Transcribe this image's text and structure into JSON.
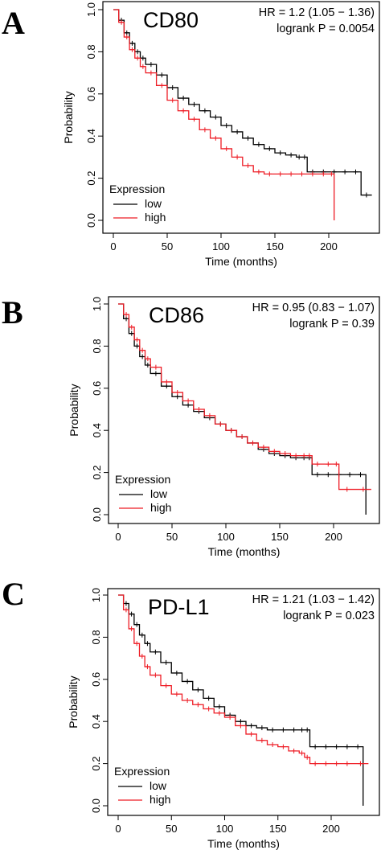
{
  "chart_data": [
    {
      "type": "line",
      "panel": "A",
      "title": "CD80",
      "hr_text": "HR = 1.2 (1.05 − 1.36)",
      "logrank_text": "logrank P = 0.0054",
      "xlabel": "Time (months)",
      "ylabel": "Probability",
      "xlim": [
        0,
        240
      ],
      "ylim": [
        0,
        1
      ],
      "x_ticks": [
        0,
        50,
        100,
        150,
        200
      ],
      "y_ticks": [
        "0.0",
        "0.2",
        "0.4",
        "0.6",
        "0.8",
        "1.0"
      ],
      "legend": {
        "title": "Expression",
        "entries": [
          "low",
          "high"
        ],
        "placement": "bottom-left"
      },
      "series": [
        {
          "name": "low",
          "color": "#000000",
          "x": [
            0,
            5,
            10,
            15,
            20,
            25,
            30,
            40,
            50,
            60,
            70,
            80,
            90,
            100,
            110,
            120,
            130,
            140,
            150,
            160,
            170,
            175,
            180,
            190,
            200,
            210,
            220,
            230,
            240
          ],
          "y": [
            1.0,
            0.95,
            0.89,
            0.84,
            0.8,
            0.77,
            0.74,
            0.69,
            0.63,
            0.58,
            0.55,
            0.52,
            0.49,
            0.45,
            0.42,
            0.39,
            0.36,
            0.34,
            0.32,
            0.31,
            0.3,
            0.3,
            0.23,
            0.23,
            0.23,
            0.23,
            0.23,
            0.12,
            0.12
          ]
        },
        {
          "name": "high",
          "color": "#ee1c25",
          "x": [
            0,
            5,
            10,
            15,
            20,
            25,
            30,
            40,
            50,
            60,
            70,
            80,
            90,
            100,
            110,
            120,
            130,
            140,
            150,
            160,
            170,
            180,
            190,
            200,
            205
          ],
          "y": [
            1.0,
            0.94,
            0.87,
            0.81,
            0.77,
            0.73,
            0.7,
            0.64,
            0.57,
            0.52,
            0.48,
            0.43,
            0.39,
            0.34,
            0.3,
            0.26,
            0.23,
            0.22,
            0.22,
            0.22,
            0.22,
            0.22,
            0.22,
            0.22,
            0.0
          ]
        }
      ]
    },
    {
      "type": "line",
      "panel": "B",
      "title": "CD86",
      "hr_text": "HR = 0.95 (0.83 − 1.07)",
      "logrank_text": "logrank P = 0.39",
      "xlabel": "Time (months)",
      "ylabel": "Probability",
      "xlim": [
        0,
        240
      ],
      "ylim": [
        0,
        1
      ],
      "x_ticks": [
        0,
        50,
        100,
        150,
        200
      ],
      "y_ticks": [
        "0.0",
        "0.2",
        "0.4",
        "0.6",
        "0.8",
        "1.0"
      ],
      "legend": {
        "title": "Expression",
        "entries": [
          "low",
          "high"
        ],
        "placement": "bottom-left"
      },
      "series": [
        {
          "name": "low",
          "color": "#000000",
          "x": [
            0,
            5,
            10,
            15,
            20,
            25,
            30,
            40,
            50,
            60,
            70,
            80,
            90,
            100,
            110,
            120,
            130,
            140,
            150,
            160,
            170,
            175,
            180,
            190,
            200,
            210,
            220,
            230
          ],
          "y": [
            1.0,
            0.93,
            0.86,
            0.8,
            0.75,
            0.71,
            0.67,
            0.61,
            0.56,
            0.52,
            0.49,
            0.46,
            0.43,
            0.4,
            0.37,
            0.34,
            0.31,
            0.29,
            0.28,
            0.27,
            0.27,
            0.27,
            0.19,
            0.19,
            0.19,
            0.19,
            0.19,
            0.0
          ]
        },
        {
          "name": "high",
          "color": "#ee1c25",
          "x": [
            0,
            5,
            10,
            15,
            20,
            25,
            30,
            40,
            50,
            60,
            70,
            80,
            90,
            100,
            110,
            120,
            130,
            140,
            150,
            160,
            170,
            175,
            180,
            190,
            200,
            205,
            220,
            235
          ],
          "y": [
            1.0,
            0.95,
            0.89,
            0.83,
            0.78,
            0.74,
            0.7,
            0.63,
            0.58,
            0.54,
            0.5,
            0.47,
            0.43,
            0.4,
            0.37,
            0.34,
            0.32,
            0.3,
            0.29,
            0.28,
            0.28,
            0.28,
            0.24,
            0.24,
            0.24,
            0.12,
            0.12,
            0.12
          ]
        }
      ]
    },
    {
      "type": "line",
      "panel": "C",
      "title": "PD-L1",
      "hr_text": "HR = 1.21 (1.03 − 1.42)",
      "logrank_text": "logrank P = 0.023",
      "xlabel": "Time (months)",
      "ylabel": "Probability",
      "xlim": [
        0,
        240
      ],
      "ylim": [
        0,
        1
      ],
      "x_ticks": [
        0,
        50,
        100,
        150,
        200
      ],
      "y_ticks": [
        "0.0",
        "0.2",
        "0.4",
        "0.6",
        "0.8",
        "1.0"
      ],
      "legend": {
        "title": "Expression",
        "entries": [
          "low",
          "high"
        ],
        "placement": "bottom-left"
      },
      "series": [
        {
          "name": "low",
          "color": "#000000",
          "x": [
            0,
            5,
            10,
            15,
            20,
            25,
            30,
            40,
            50,
            60,
            70,
            80,
            90,
            100,
            110,
            120,
            130,
            140,
            150,
            160,
            170,
            175,
            180,
            190,
            200,
            210,
            220,
            230
          ],
          "y": [
            1.0,
            0.96,
            0.91,
            0.86,
            0.81,
            0.77,
            0.73,
            0.68,
            0.63,
            0.59,
            0.55,
            0.51,
            0.47,
            0.43,
            0.4,
            0.38,
            0.37,
            0.36,
            0.36,
            0.36,
            0.36,
            0.36,
            0.28,
            0.28,
            0.28,
            0.28,
            0.28,
            0.0
          ]
        },
        {
          "name": "high",
          "color": "#ee1c25",
          "x": [
            0,
            5,
            10,
            15,
            20,
            25,
            30,
            40,
            50,
            60,
            70,
            80,
            90,
            100,
            110,
            120,
            130,
            140,
            150,
            160,
            170,
            175,
            180,
            190,
            200,
            210,
            220,
            235
          ],
          "y": [
            1.0,
            0.93,
            0.84,
            0.77,
            0.71,
            0.66,
            0.62,
            0.57,
            0.53,
            0.5,
            0.48,
            0.46,
            0.44,
            0.42,
            0.38,
            0.34,
            0.31,
            0.29,
            0.28,
            0.26,
            0.25,
            0.23,
            0.2,
            0.2,
            0.2,
            0.2,
            0.2,
            0.2
          ]
        }
      ]
    }
  ]
}
